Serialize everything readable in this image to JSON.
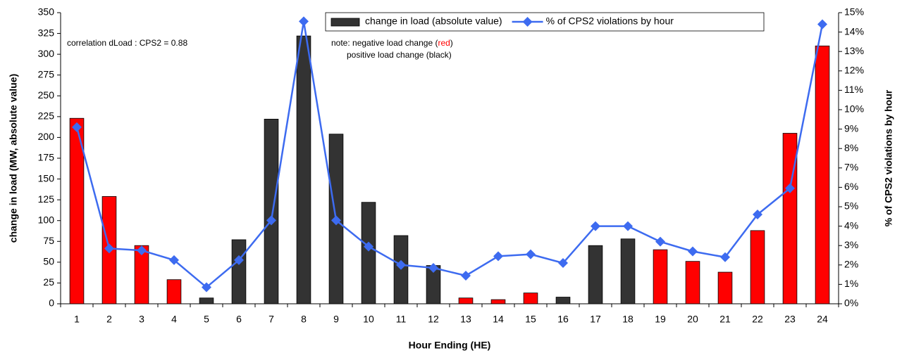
{
  "chart_data": {
    "type": "bar_line",
    "xlabel": "Hour Ending (HE)",
    "ylabel": "change in load (MW, absolute value)",
    "y2label": "% of CPS2 violations by hour",
    "categories": [
      "1",
      "2",
      "3",
      "4",
      "5",
      "6",
      "7",
      "8",
      "9",
      "10",
      "11",
      "12",
      "13",
      "14",
      "15",
      "16",
      "17",
      "18",
      "19",
      "20",
      "21",
      "22",
      "23",
      "24"
    ],
    "series": [
      {
        "name": "change in load (absolute value)",
        "type": "bar",
        "color": "#333333",
        "colors": [
          "#ff0000",
          "#ff0000",
          "#ff0000",
          "#ff0000",
          "#333333",
          "#333333",
          "#333333",
          "#333333",
          "#333333",
          "#333333",
          "#333333",
          "#333333",
          "#ff0000",
          "#ff0000",
          "#ff0000",
          "#333333",
          "#333333",
          "#333333",
          "#ff0000",
          "#ff0000",
          "#ff0000",
          "#ff0000",
          "#ff0000",
          "#ff0000"
        ],
        "values": [
          223,
          129,
          70,
          29,
          7,
          77,
          222,
          322,
          204,
          122,
          82,
          46,
          7,
          5,
          13,
          8,
          70,
          78,
          65,
          51,
          38,
          88,
          205,
          310
        ]
      },
      {
        "name": "% of CPS2 violations by hour",
        "type": "line",
        "axis": "y2",
        "color": "#3d6bf0",
        "values": [
          9.1,
          2.85,
          2.75,
          2.25,
          0.85,
          2.25,
          4.3,
          14.55,
          4.3,
          2.95,
          2.0,
          1.85,
          1.45,
          2.45,
          2.55,
          2.1,
          4.0,
          4.0,
          3.2,
          2.7,
          2.4,
          4.6,
          5.95,
          14.4
        ]
      }
    ],
    "ylim": [
      0,
      350
    ],
    "yticks": [
      0,
      25,
      50,
      75,
      100,
      125,
      150,
      175,
      200,
      225,
      250,
      275,
      300,
      325,
      350
    ],
    "y2lim": [
      0,
      15
    ],
    "y2ticks": [
      {
        "value": 0,
        "label": "0%"
      },
      {
        "value": 1,
        "label": "1%"
      },
      {
        "value": 2,
        "label": "2%"
      },
      {
        "value": 3,
        "label": "3%"
      },
      {
        "value": 4,
        "label": "4%"
      },
      {
        "value": 5,
        "label": "5%"
      },
      {
        "value": 6,
        "label": "6%"
      },
      {
        "value": 7,
        "label": "7%"
      },
      {
        "value": 8,
        "label": "8%"
      },
      {
        "value": 9,
        "label": "9%"
      },
      {
        "value": 10,
        "label": "10%"
      },
      {
        "value": 11,
        "label": "11%"
      },
      {
        "value": 12,
        "label": "12%"
      },
      {
        "value": 13,
        "label": "13%"
      },
      {
        "value": 14,
        "label": "14%"
      },
      {
        "value": 15,
        "label": "15%"
      }
    ],
    "annotations": {
      "correlation": "correlation dLoad : CPS2 = 0.88",
      "note_line1": [
        "note: negative load change (",
        "red",
        ")"
      ],
      "note_line2": "positive load change (black)"
    },
    "legend": "top"
  }
}
